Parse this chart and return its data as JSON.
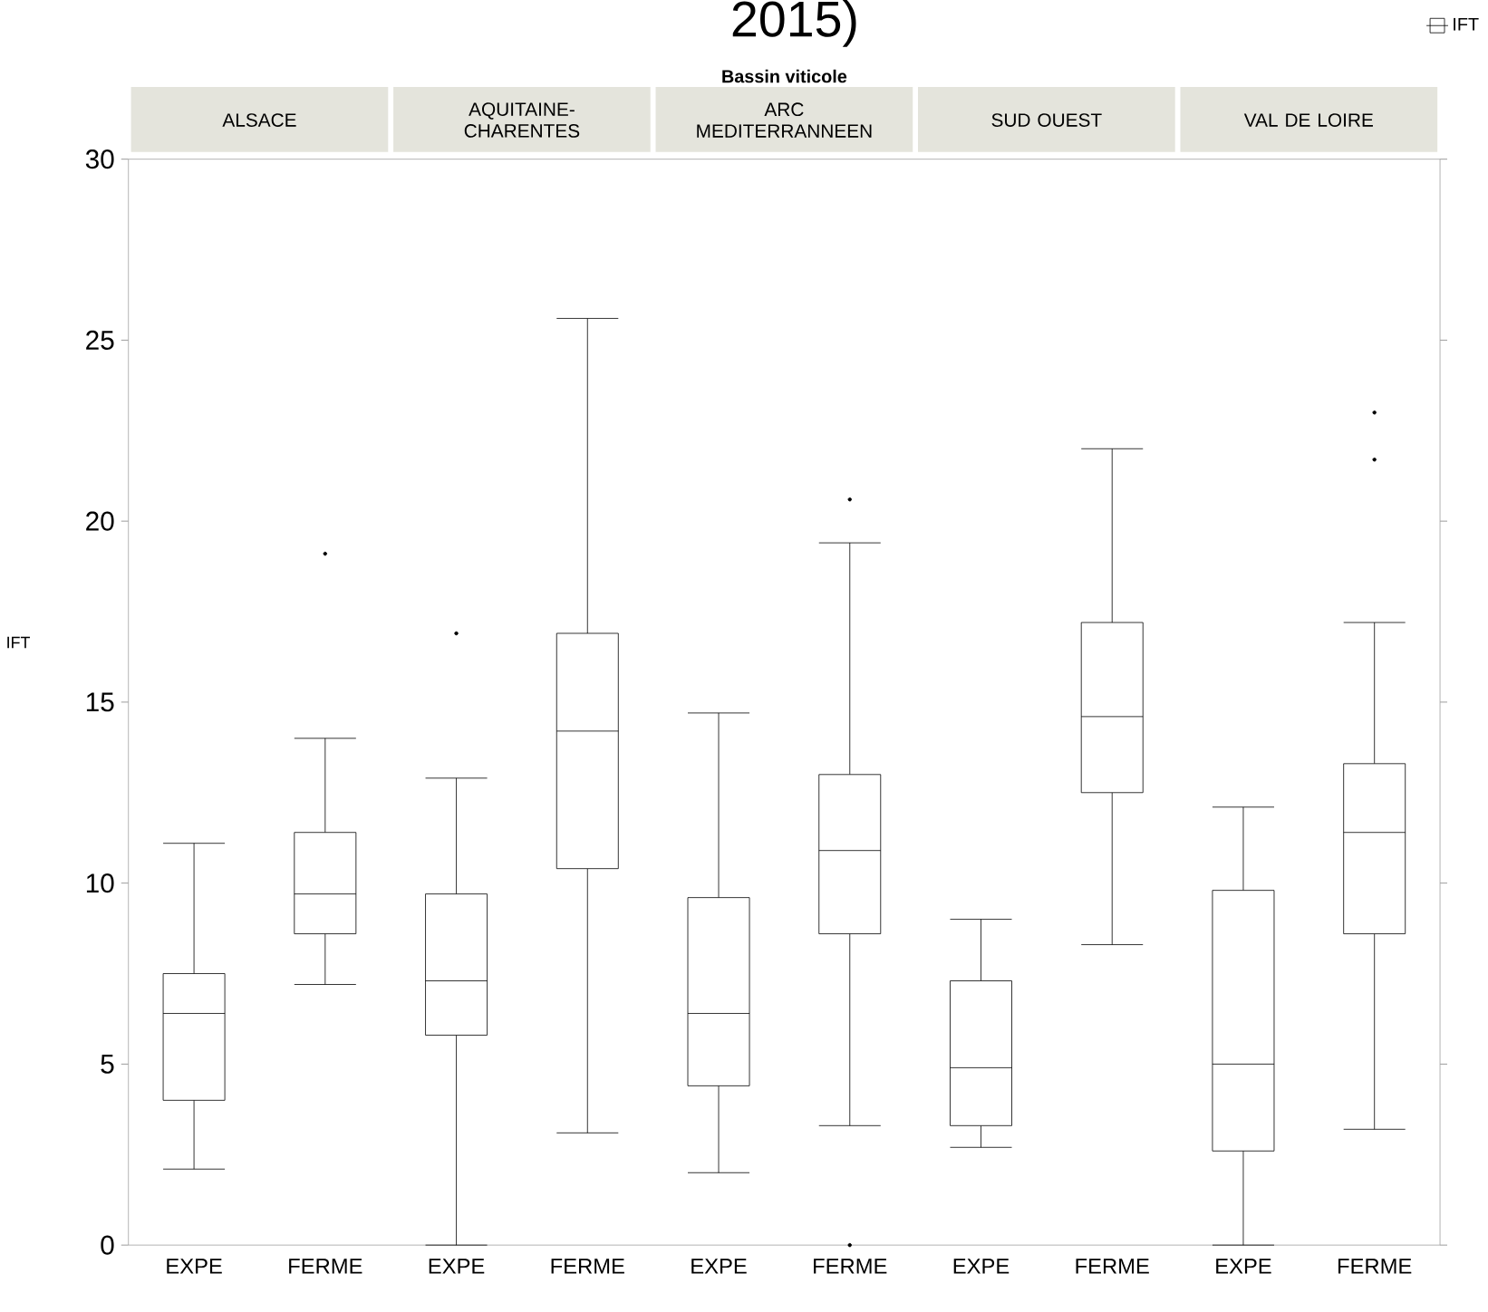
{
  "chart_data": {
    "type": "box",
    "title": "2015)",
    "subtitle": "Bassin viticole",
    "ylabel": "IFT",
    "annotations": [
      "ALSACE",
      "AQUITAINE-\nCHARENTES",
      "ARC\nMEDITERRANNEEN",
      "SUD OUEST",
      "VAL DE LOIRE"
    ],
    "categories": [
      "EXPE",
      "FERME",
      "EXPE",
      "FERME",
      "EXPE",
      "FERME",
      "EXPE",
      "FERME",
      "EXPE",
      "FERME"
    ],
    "series": [
      {
        "name": "IFT",
        "color": "#000000",
        "boxes": [
          {
            "low": 2.1,
            "q1": 4.0,
            "median": 6.4,
            "q3": 7.5,
            "high": 11.1
          },
          {
            "low": 7.2,
            "q1": 8.6,
            "median": 9.7,
            "q3": 11.4,
            "high": 14.0,
            "outliers": [
              19.1
            ]
          },
          {
            "low": 0,
            "q1": 5.8,
            "median": 7.3,
            "q3": 9.7,
            "high": 12.9,
            "outliers": [
              16.9
            ]
          },
          {
            "low": 3.1,
            "q1": 10.4,
            "median": 14.2,
            "q3": 16.9,
            "high": 25.6
          },
          {
            "low": 2.0,
            "q1": 4.4,
            "median": 6.4,
            "q3": 9.6,
            "high": 14.7
          },
          {
            "low": 3.3,
            "q1": 8.6,
            "median": 10.9,
            "q3": 13.0,
            "high": 19.4,
            "outliers": [
              20.6,
              0
            ]
          },
          {
            "low": 2.7,
            "q1": 3.3,
            "median": 4.9,
            "q3": 7.3,
            "high": 9.0
          },
          {
            "low": 8.3,
            "q1": 12.5,
            "median": 14.6,
            "q3": 17.2,
            "high": 22.0
          },
          {
            "low": 0,
            "q1": 2.6,
            "median": 5.0,
            "q3": 9.8,
            "high": 12.1
          },
          {
            "low": 3.2,
            "q1": 8.6,
            "median": 11.4,
            "q3": 13.3,
            "high": 17.2,
            "outliers": [
              23.0,
              21.7
            ]
          }
        ]
      }
    ],
    "ylim": [
      0,
      30
    ],
    "yticks": [
      0,
      5,
      10,
      15,
      20,
      25,
      30
    ],
    "grid": false,
    "legend": "top right"
  }
}
